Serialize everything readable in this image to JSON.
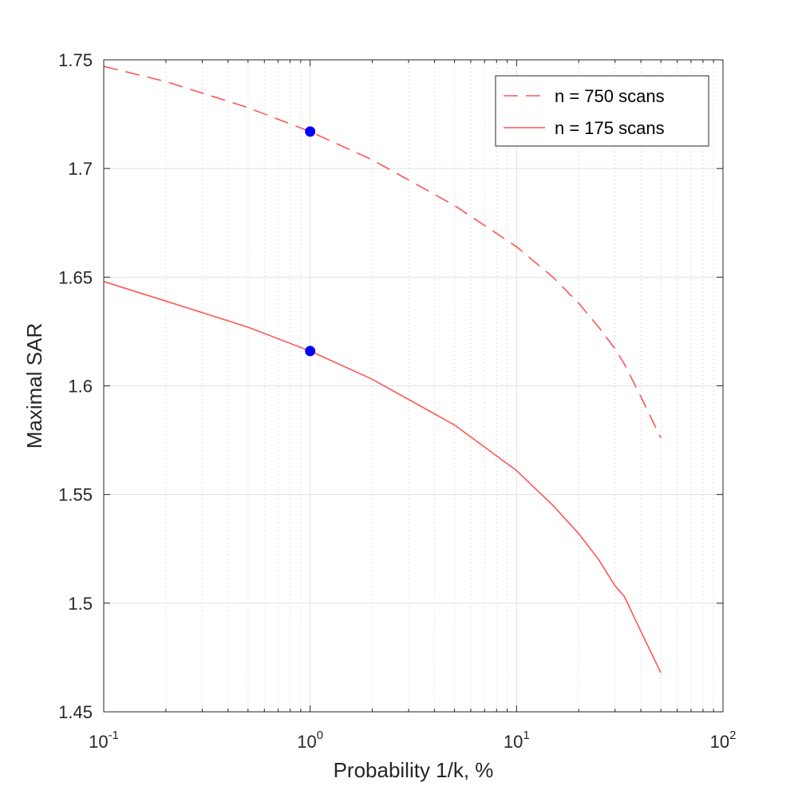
{
  "chart_data": {
    "type": "line",
    "title": "",
    "xlabel": "Probability 1/k, %",
    "ylabel": "Maximal SAR",
    "xscale": "log",
    "xlim": [
      0.1,
      100
    ],
    "ylim": [
      1.45,
      1.75
    ],
    "grid": true,
    "legend_position": "top-right",
    "x_ticks": [
      {
        "value": 0.1,
        "base": "10",
        "exp": "-1"
      },
      {
        "value": 1,
        "base": "10",
        "exp": "0"
      },
      {
        "value": 10,
        "base": "10",
        "exp": "1"
      },
      {
        "value": 100,
        "base": "10",
        "exp": "2"
      }
    ],
    "y_ticks": [
      {
        "value": 1.45,
        "label": "1.45"
      },
      {
        "value": 1.5,
        "label": "1.5"
      },
      {
        "value": 1.55,
        "label": "1.55"
      },
      {
        "value": 1.6,
        "label": "1.6"
      },
      {
        "value": 1.65,
        "label": "1.65"
      },
      {
        "value": 1.7,
        "label": "1.7"
      },
      {
        "value": 1.75,
        "label": "1.75"
      }
    ],
    "series": [
      {
        "name": "n = 750 scans",
        "style": "dashed",
        "color": "#ff5555",
        "x": [
          0.1,
          0.2,
          0.5,
          1,
          2,
          5,
          10,
          15,
          20,
          25,
          30,
          33.3,
          40,
          50
        ],
        "y": [
          1.747,
          1.74,
          1.728,
          1.717,
          1.704,
          1.683,
          1.664,
          1.65,
          1.638,
          1.627,
          1.617,
          1.61,
          1.595,
          1.576
        ]
      },
      {
        "name": "n  = 175 scans",
        "style": "solid",
        "color": "#ff5555",
        "x": [
          0.1,
          0.2,
          0.5,
          1,
          2,
          5,
          10,
          15,
          20,
          25,
          30,
          33.3,
          40,
          50
        ],
        "y": [
          1.648,
          1.639,
          1.627,
          1.616,
          1.603,
          1.582,
          1.561,
          1.545,
          1.532,
          1.52,
          1.508,
          1.503,
          1.487,
          1.468
        ]
      }
    ],
    "markers": [
      {
        "x": 1,
        "y": 1.717,
        "color": "#0000ff"
      },
      {
        "x": 1,
        "y": 1.616,
        "color": "#0000ff"
      }
    ]
  }
}
